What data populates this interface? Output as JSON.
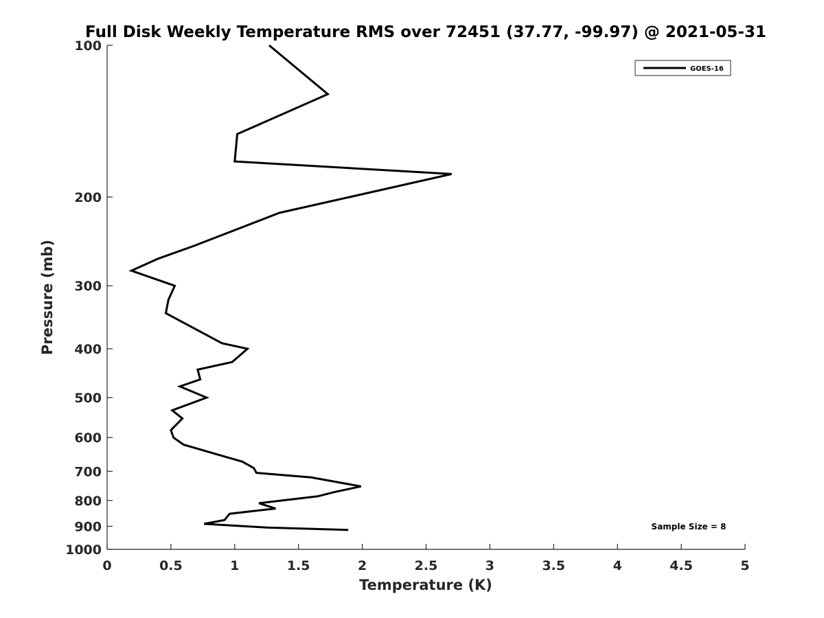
{
  "chart_data": {
    "type": "line",
    "title": "Full Disk Weekly Temperature RMS over 72451 (37.77, -99.97) @ 2021-05-31",
    "xlabel": "Temperature (K)",
    "ylabel": "Pressure (mb)",
    "xlim": [
      0,
      5
    ],
    "ylim": [
      100,
      1000
    ],
    "y_scale": "log",
    "y_reversed": true,
    "grid": false,
    "legend_position": "top-right",
    "x_ticks": [
      0,
      0.5,
      1,
      1.5,
      2,
      2.5,
      3,
      3.5,
      4,
      4.5,
      5
    ],
    "x_tick_labels": [
      "0",
      "0.5",
      "1",
      "1.5",
      "2",
      "2.5",
      "3",
      "3.5",
      "4",
      "4.5",
      "5"
    ],
    "y_ticks": [
      100,
      200,
      300,
      400,
      500,
      600,
      700,
      800,
      900,
      1000
    ],
    "y_tick_labels": [
      "100",
      "200",
      "300",
      "400",
      "500",
      "600",
      "700",
      "800",
      "900",
      "1000"
    ],
    "series": [
      {
        "name": "GOES-16",
        "color": "#000000",
        "points": [
          [
            1.27,
            100
          ],
          [
            1.73,
            125
          ],
          [
            1.02,
            150
          ],
          [
            1.0,
            170
          ],
          [
            2.7,
            180
          ],
          [
            1.9,
            200
          ],
          [
            1.35,
            215
          ],
          [
            0.68,
            250
          ],
          [
            0.4,
            265
          ],
          [
            0.19,
            280
          ],
          [
            0.53,
            300
          ],
          [
            0.48,
            320
          ],
          [
            0.46,
            340
          ],
          [
            0.9,
            390
          ],
          [
            1.1,
            400
          ],
          [
            0.98,
            425
          ],
          [
            0.71,
            440
          ],
          [
            0.73,
            460
          ],
          [
            0.57,
            475
          ],
          [
            0.78,
            500
          ],
          [
            0.51,
            530
          ],
          [
            0.59,
            550
          ],
          [
            0.5,
            580
          ],
          [
            0.52,
            600
          ],
          [
            0.6,
            620
          ],
          [
            0.88,
            650
          ],
          [
            1.06,
            670
          ],
          [
            1.15,
            690
          ],
          [
            1.17,
            705
          ],
          [
            1.6,
            720
          ],
          [
            1.99,
            750
          ],
          [
            1.78,
            770
          ],
          [
            1.65,
            785
          ],
          [
            1.19,
            810
          ],
          [
            1.32,
            830
          ],
          [
            0.96,
            850
          ],
          [
            0.92,
            875
          ],
          [
            0.76,
            890
          ],
          [
            1.25,
            905
          ],
          [
            1.89,
            915
          ]
        ]
      }
    ],
    "annotations": [
      "Sample Size = 8"
    ]
  }
}
